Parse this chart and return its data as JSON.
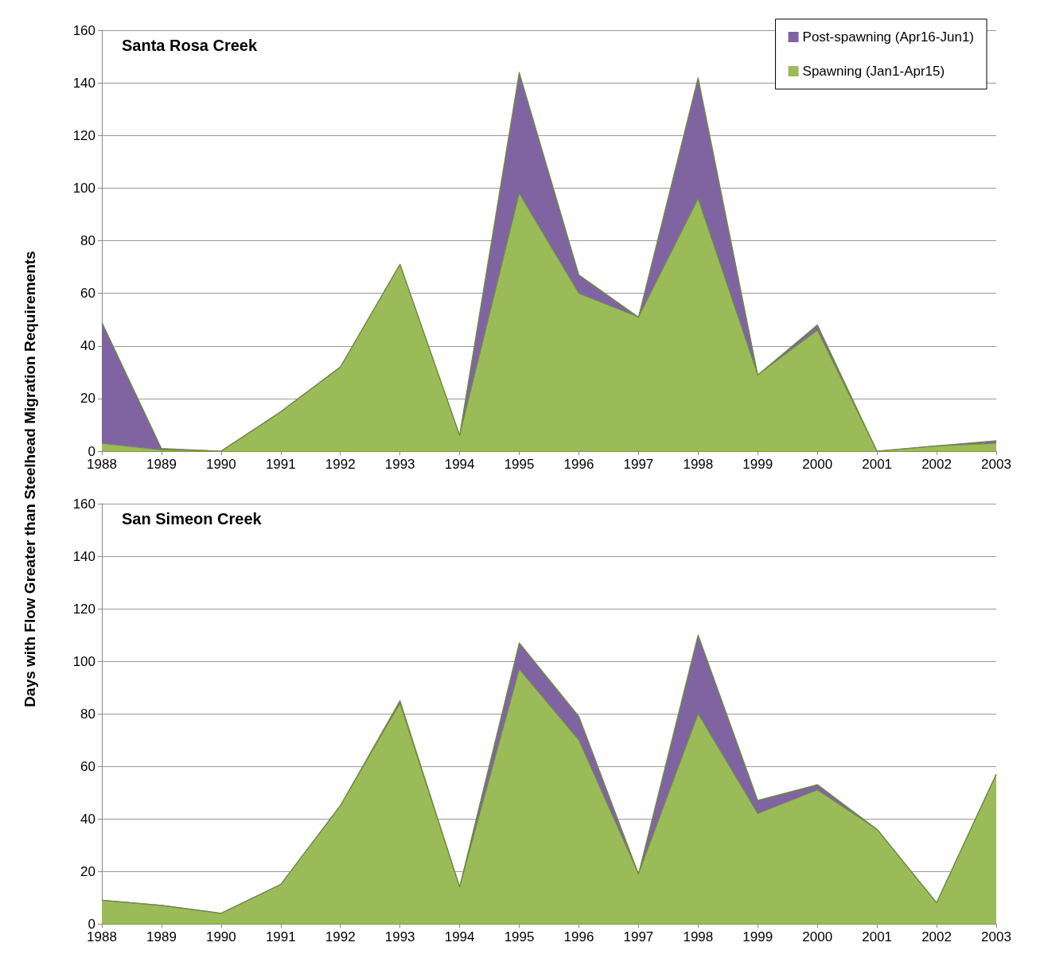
{
  "chart_data": [
    {
      "type": "area",
      "title": "Santa Rosa Creek",
      "ylabel": "Days with Flow Greater than Steelhead Migration Requirements",
      "categories": [
        "1988",
        "1989",
        "1990",
        "1991",
        "1992",
        "1993",
        "1994",
        "1995",
        "1996",
        "1997",
        "1998",
        "1999",
        "2000",
        "2001",
        "2002",
        "2003"
      ],
      "stacked": true,
      "series": [
        {
          "name": "Spawning (Jan1-Apr15)",
          "color": "#9bbb59",
          "values": [
            3,
            0.5,
            0,
            15,
            32,
            71,
            6,
            98,
            60,
            51,
            96,
            29,
            46,
            0,
            2,
            3
          ]
        },
        {
          "name": "Post-spawning (Apr16-Jun1)",
          "color": "#8064a2",
          "values": [
            46,
            0.5,
            0,
            0,
            0,
            0,
            0,
            46,
            7,
            0,
            46,
            0,
            2,
            0,
            0,
            1
          ]
        }
      ],
      "ylim": [
        0,
        160
      ],
      "yticks": [
        0,
        20,
        40,
        60,
        80,
        100,
        120,
        140,
        160
      ],
      "grid": "y",
      "legend": "top right",
      "marker": "none"
    },
    {
      "type": "area",
      "title": "San Simeon Creek",
      "categories": [
        "1988",
        "1989",
        "1990",
        "1991",
        "1992",
        "1993",
        "1994",
        "1995",
        "1996",
        "1997",
        "1998",
        "1999",
        "2000",
        "2001",
        "2002",
        "2003"
      ],
      "stacked": true,
      "series": [
        {
          "color": "#9bbb59",
          "values": [
            9,
            7,
            4,
            15,
            45,
            84,
            14,
            97,
            70,
            19,
            80,
            42,
            51,
            36,
            8,
            57
          ]
        },
        {
          "color": "#8064a2",
          "values": [
            0,
            0,
            0,
            0,
            0,
            1,
            0,
            10,
            9,
            0,
            30,
            5,
            2,
            0,
            0,
            0
          ]
        }
      ],
      "ylim": [
        0,
        160
      ],
      "yticks": [
        0,
        20,
        40,
        60,
        80,
        100,
        120,
        140,
        160
      ],
      "grid": "y",
      "legend": false,
      "marker": "none"
    }
  ]
}
